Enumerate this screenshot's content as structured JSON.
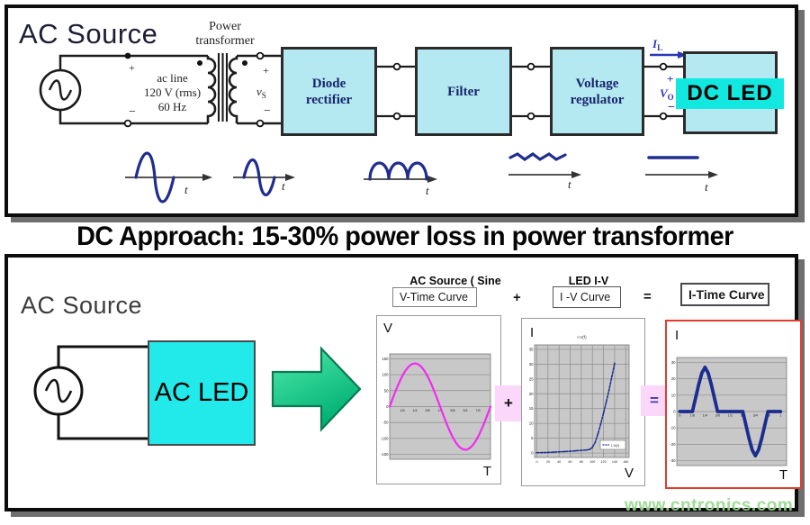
{
  "headline": "DC Approach: 15-30% power loss in power transformer",
  "watermark": "www.cntronics.com",
  "colors": {
    "block_fill": "#b5e9f2",
    "bright_cyan": "#12e7e0",
    "block_text_navy": "#17256b",
    "signal_blue": "#2a35b8",
    "waveform_navy": "#1f2d8e",
    "sine_magenta": "#f32af3",
    "chart_curve_navy": "#1b2d8f",
    "chart_plot_bg": "#c8c8c8",
    "op_box_pink": "#fbd7fb",
    "green_arrow": "#00bb7d",
    "red_chart_border": "#e23b2e",
    "watermark_green": "#96d68c"
  },
  "top_panel": {
    "title": "AC Source",
    "transformer_label_line1": "Power",
    "transformer_label_line2": "transformer",
    "primary_plus": "+",
    "primary_minus": "−",
    "ac_line": [
      "ac line",
      "120 V (rms)",
      "60 Hz"
    ],
    "secondary_plus": "+",
    "secondary_minus": "−",
    "vs_base": "v",
    "vs_sub": "S",
    "blocks": [
      {
        "label": "Diode rectifier"
      },
      {
        "label": "Filter"
      },
      {
        "label": "Voltage regulator"
      }
    ],
    "il_base": "I",
    "il_sub": "L",
    "vo_plus": "+",
    "vo_base": "V",
    "vo_sub": "O",
    "vo_minus": "−",
    "dc_led": "DC LED",
    "waveform_t_labels": [
      "t",
      "t",
      "t",
      "t",
      "t"
    ]
  },
  "bottom_panel": {
    "title": "AC Source",
    "ac_led": "AC LED",
    "captions": {
      "col1": "AC Source ( Sine Wave)",
      "col2": "LED I-V"
    },
    "boxes": {
      "col1": "V-Time Curve",
      "col2": "I -V Curve",
      "col3": "I-Time Curve"
    },
    "operators": {
      "plus_top": "+",
      "equals_top": "=",
      "plus_mid": "+",
      "equals_mid": "="
    }
  },
  "chart_data": [
    {
      "name": "v_time_curve",
      "type": "line",
      "y_axis_label": "V",
      "x_axis_label": "T",
      "xlim": [
        0,
        1
      ],
      "ylim": [
        -165,
        165
      ],
      "yticks": [
        150,
        100,
        50,
        0,
        -50,
        -100,
        -150
      ],
      "xtick_values": [
        0.125,
        0.25,
        0.375,
        0.5,
        0.625,
        0.75,
        0.875
      ],
      "xtick_labels": [
        "1/8",
        "1/4",
        "3/8",
        "1/2",
        "5/8",
        "3/4",
        "7/8"
      ],
      "x_labels_on_axis": true,
      "vgrid": false,
      "series": [
        {
          "name": "V(t)",
          "generator": {
            "shape": "sine",
            "amplitude": 135,
            "cycles": 1,
            "samples": 72
          },
          "color": "#f32af3",
          "width": 2.2
        }
      ]
    },
    {
      "name": "led_iv_curve",
      "type": "line",
      "y_axis_label": "I",
      "x_axis_label": "V",
      "title": "I-V(f)",
      "legend": "I-V(f)",
      "xlim": [
        -4,
        166
      ],
      "ylim": [
        -1.5,
        36.5
      ],
      "yticks": [
        0,
        5,
        10,
        15,
        20,
        25,
        30,
        35
      ],
      "xtick_values": [
        0,
        20,
        40,
        60,
        80,
        100,
        120,
        140,
        160
      ],
      "xtick_labels": [
        "0",
        "20",
        "40",
        "60",
        "80",
        "100",
        "120",
        "140",
        "160"
      ],
      "x_labels_on_axis": false,
      "vgrid": true,
      "series": [
        {
          "name": "I-V(f)",
          "points": [
            [
              0,
              0.1
            ],
            [
              10,
              0.15
            ],
            [
              20,
              0.2
            ],
            [
              30,
              0.3
            ],
            [
              40,
              0.4
            ],
            [
              50,
              0.5
            ],
            [
              60,
              0.6
            ],
            [
              70,
              0.75
            ],
            [
              80,
              0.9
            ],
            [
              90,
              1.05
            ],
            [
              95,
              1.2
            ],
            [
              100,
              1.9
            ],
            [
              105,
              3.6
            ],
            [
              110,
              6.5
            ],
            [
              115,
              9.8
            ],
            [
              120,
              13.5
            ],
            [
              125,
              17.3
            ],
            [
              130,
              21.3
            ],
            [
              135,
              25.8
            ],
            [
              140,
              30.3
            ]
          ],
          "color": "#1b2d8f",
          "width": 1.5,
          "dash": "2.4,1.6",
          "markers": 0.9
        }
      ]
    },
    {
      "name": "i_time_curve",
      "type": "line",
      "y_axis_label": "I",
      "x_axis_label": "T",
      "xlim": [
        -0.03,
        1.06
      ],
      "ylim": [
        -33,
        33
      ],
      "yticks": [
        30,
        20,
        10,
        0,
        -10,
        -20,
        -30
      ],
      "xtick_values": [
        0,
        0.125,
        0.25,
        0.375,
        0.5,
        0.625,
        0.75,
        0.875,
        1
      ],
      "xtick_labels": [
        "0",
        "1/8",
        "1/4",
        "3/8",
        "1/2",
        "5/8",
        "3/4",
        "7/8",
        "1"
      ],
      "x_labels_on_axis": true,
      "vgrid": false,
      "series": [
        {
          "name": "I(t)",
          "points": [
            [
              0,
              0
            ],
            [
              0.0625,
              0
            ],
            [
              0.125,
              0
            ],
            [
              0.15625,
              8.2
            ],
            [
              0.1875,
              16.5
            ],
            [
              0.21875,
              23.5
            ],
            [
              0.25,
              27
            ],
            [
              0.28125,
              23.5
            ],
            [
              0.3125,
              16.5
            ],
            [
              0.34375,
              8.2
            ],
            [
              0.375,
              0
            ],
            [
              0.4375,
              0
            ],
            [
              0.5,
              0
            ],
            [
              0.5625,
              0
            ],
            [
              0.625,
              0
            ],
            [
              0.65625,
              -8.2
            ],
            [
              0.6875,
              -16.5
            ],
            [
              0.71875,
              -23.5
            ],
            [
              0.75,
              -27
            ],
            [
              0.78125,
              -23.5
            ],
            [
              0.8125,
              -16.5
            ],
            [
              0.84375,
              -8.2
            ],
            [
              0.875,
              0
            ],
            [
              0.9375,
              0
            ],
            [
              1,
              0
            ]
          ],
          "color": "#1b2d8f",
          "width": 3.8,
          "markers": 1.7
        }
      ]
    }
  ]
}
